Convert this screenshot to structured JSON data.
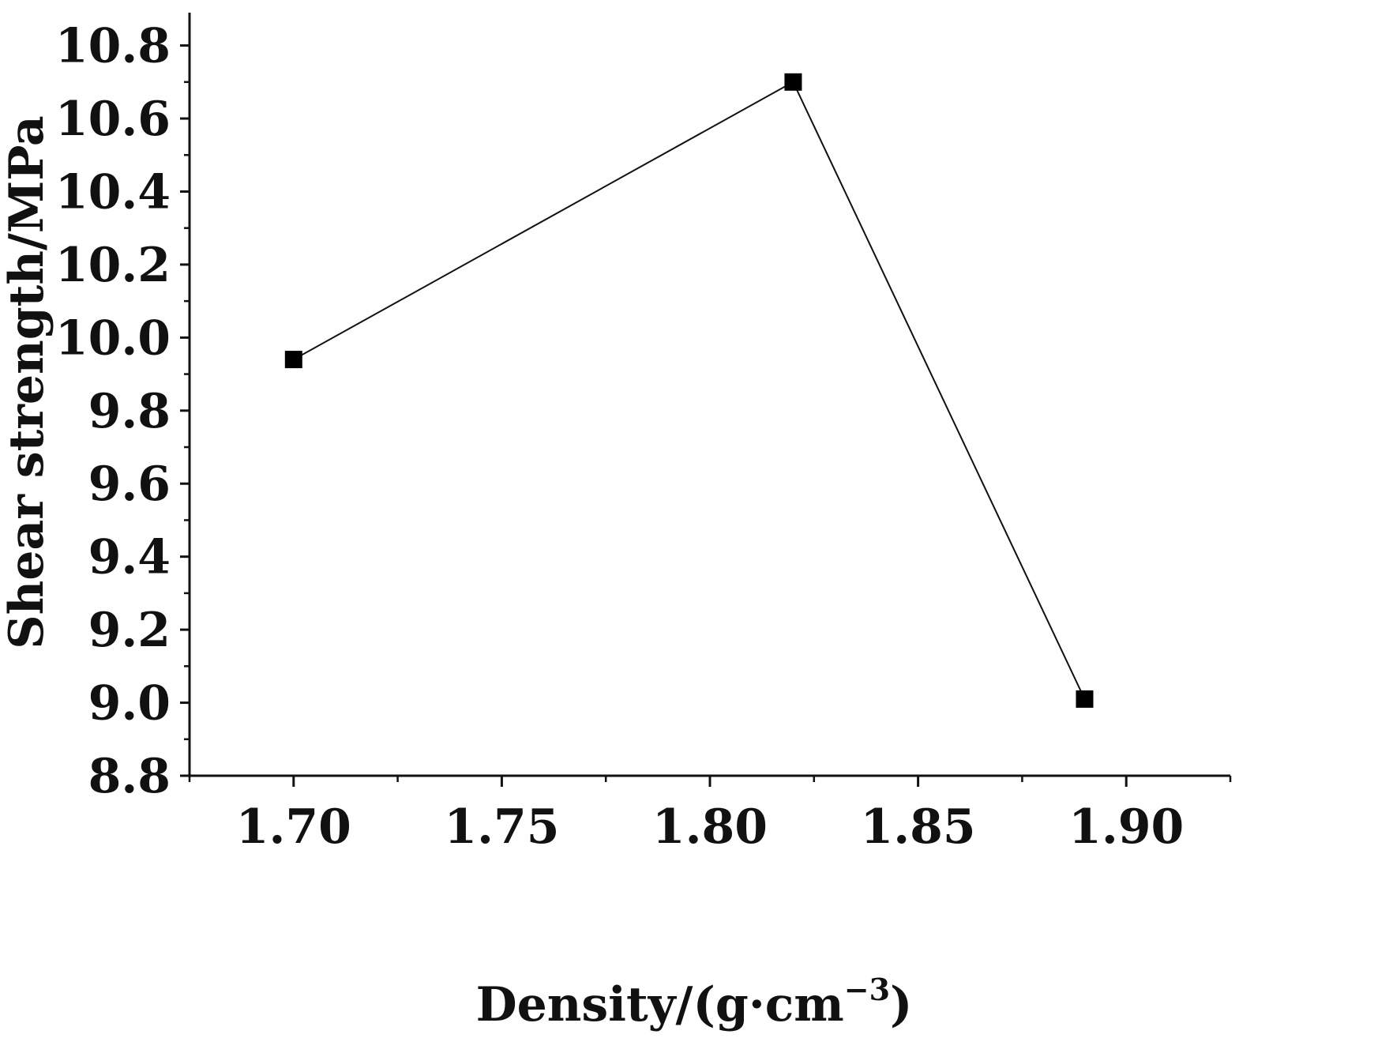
{
  "chart_data": {
    "type": "line",
    "title": "",
    "xlabel": "Density/(g·cm",
    "xlabel_sup": "−3",
    "xlabel_close": ")",
    "ylabel": "Shear strength/MPa",
    "xlim": [
      1.675,
      1.925
    ],
    "ylim": [
      8.8,
      10.89
    ],
    "x_ticks": [
      1.7,
      1.75,
      1.8,
      1.85,
      1.9
    ],
    "x_tick_labels": [
      "1.70",
      "1.75",
      "1.80",
      "1.85",
      "1.90"
    ],
    "y_ticks": [
      8.8,
      9.0,
      9.2,
      9.4,
      9.6,
      9.8,
      10.0,
      10.2,
      10.4,
      10.6,
      10.8
    ],
    "y_tick_labels": [
      "8.8",
      "9.0",
      "9.2",
      "9.4",
      "9.6",
      "9.8",
      "10.0",
      "10.2",
      "10.4",
      "10.6",
      "10.8"
    ],
    "grid": false,
    "legend": "none",
    "marker": "square",
    "colors": {
      "line": "#111111",
      "marker": "#000000",
      "axis": "#111111"
    },
    "series": [
      {
        "x": [
          1.7,
          1.82,
          1.89
        ],
        "y": [
          9.94,
          10.7,
          9.01
        ]
      }
    ]
  }
}
